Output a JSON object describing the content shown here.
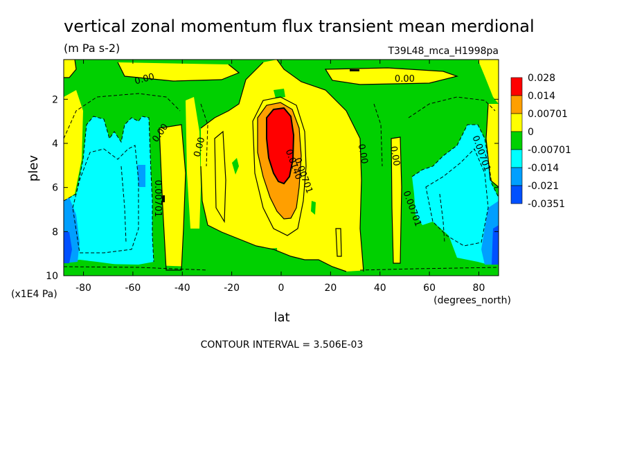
{
  "chart_data": {
    "type": "heatmap",
    "title": "vertical zonal momentum flux transient mean merdional",
    "units": "(m Pa s-2)",
    "run_label": "T39L48_mca_H1998pa",
    "xlabel": "lat",
    "xlabel_units": "(degrees_north)",
    "ylabel": "plev",
    "ylabel_units": "(x1E4 Pa)",
    "footer": "CONTOUR INTERVAL = 3.506E-03",
    "xlim": [
      -88,
      88
    ],
    "ylim": [
      0.2,
      10
    ],
    "y_reversed": true,
    "x_ticks": [
      "-80",
      "-60",
      "-40",
      "-20",
      "0",
      "20",
      "40",
      "60",
      "80"
    ],
    "y_ticks": [
      "2",
      "4",
      "6",
      "8",
      "10"
    ],
    "legend": {
      "placement": "right",
      "levels": [
        "0.028",
        "0.014",
        "0.00701",
        "0",
        "-0.00701",
        "-0.014",
        "-0.021",
        "-0.0351"
      ],
      "colors": [
        "#ff0000",
        "#ff9f00",
        "#ffff00",
        "#00d000",
        "#00ffff",
        "#009fff",
        "#0050ff"
      ]
    },
    "contour_labels": [
      {
        "text": "0.00",
        "x": -55,
        "y": 1.2,
        "angle": -15
      },
      {
        "text": "0.00",
        "x": 50,
        "y": 1.2,
        "angle": 0
      },
      {
        "text": "0.00",
        "x": -48,
        "y": 3.6,
        "angle": -55
      },
      {
        "text": "0.00",
        "x": -32,
        "y": 4.2,
        "angle": -75
      },
      {
        "text": "0.00",
        "x": 32,
        "y": 4.5,
        "angle": 80
      },
      {
        "text": "0.00",
        "x": 45,
        "y": 4.6,
        "angle": 80
      },
      {
        "text": "0.00701",
        "x": -51,
        "y": 6.5,
        "angle": 90
      },
      {
        "text": "0.00701",
        "x": 52,
        "y": 7.0,
        "angle": 70
      },
      {
        "text": "0.00701",
        "x": 80,
        "y": 4.5,
        "angle": 70
      },
      {
        "text": "0.0140",
        "x": 4,
        "y": 5.0,
        "angle": 70
      },
      {
        "text": "0.00701",
        "x": 8,
        "y": 5.5,
        "angle": 70
      }
    ]
  }
}
